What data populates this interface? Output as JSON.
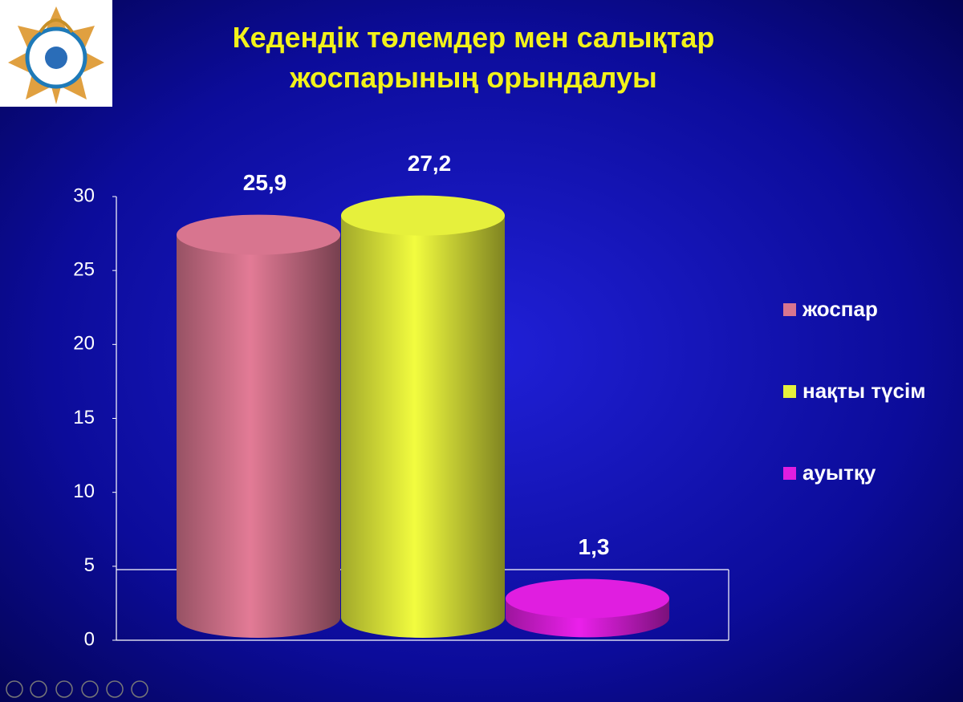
{
  "chart_data": {
    "type": "bar",
    "title": [
      "Кедендік төлемдер мен салықтар",
      "жоспарының орындалуы"
    ],
    "categories": [
      null
    ],
    "series": [
      {
        "name": "жоспар",
        "color": "#d8758f",
        "values": [
          25.9
        ],
        "value_labels": [
          "25,9"
        ]
      },
      {
        "name": "нақты түсім",
        "color": "#e6f03c",
        "values": [
          27.2
        ],
        "value_labels": [
          "27,2"
        ]
      },
      {
        "name": "ауытқу",
        "color": "#e01ee0",
        "values": [
          1.3
        ],
        "value_labels": [
          "1,3"
        ]
      }
    ],
    "ylim": [
      0,
      30
    ],
    "yticks": [
      0,
      5,
      10,
      15,
      20,
      25,
      30
    ],
    "grid": false,
    "legend": "right"
  }
}
